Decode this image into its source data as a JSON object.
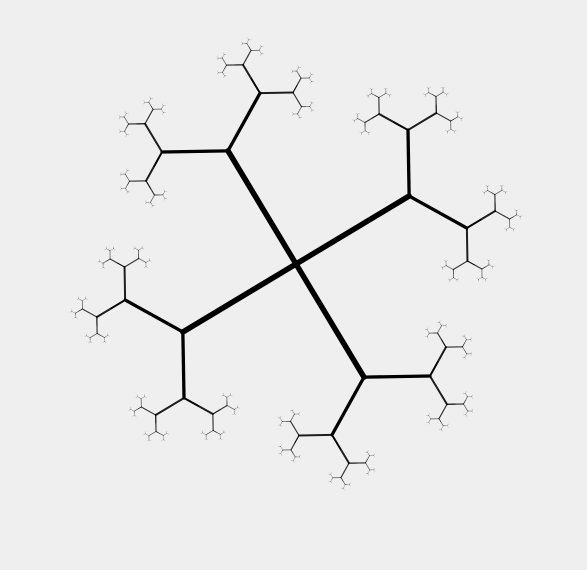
{
  "canvas": {
    "background_color": "#efefef",
    "stroke_color": "#000000"
  },
  "fractal": {
    "type": "branching-tree",
    "levels": 7,
    "arms_per_node": 3,
    "arm_angle_step_deg": 120,
    "branch_offset_deg": 60,
    "scale_factor": 0.5,
    "root_branches": 4,
    "root_start_angle_deg": -121,
    "root_angle_step_deg": 90
  }
}
